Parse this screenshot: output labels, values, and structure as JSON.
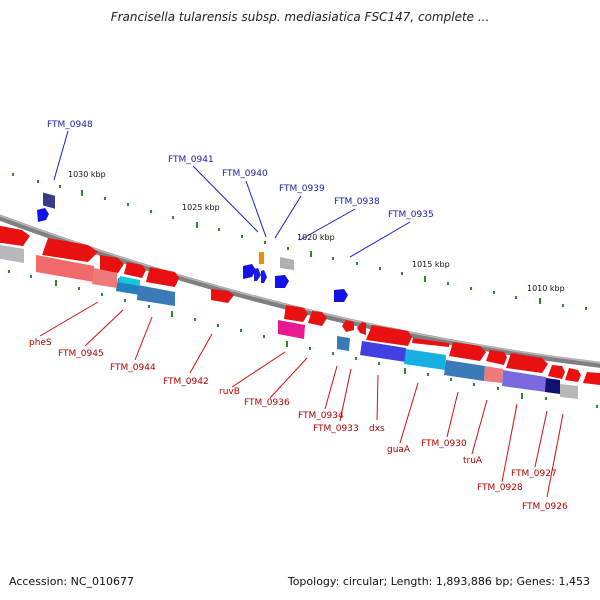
{
  "title": "Francisella tularensis subsp. mediasiatica FSC147, complete ...",
  "footer": {
    "accession": "Accession: NC_010677",
    "summary": "Topology: circular; Length: 1,893,886 bp; Genes: 1,453"
  },
  "colors": {
    "backbone": "#8c8c8c",
    "gene_red": "#e81010",
    "gene_blue": "#1010e0",
    "label_blue": "#1a1aa8",
    "label_red": "#b00000",
    "tick_green": "#1a8a1a"
  },
  "kbp_ticks": [
    "1030 kbp",
    "1025 kbp",
    "1020 kbp",
    "1015 kbp",
    "1010 kbp"
  ],
  "labels_top": [
    "FTM_0948",
    "FTM_0941",
    "FTM_0940",
    "FTM_0939",
    "FTM_0938",
    "FTM_0935"
  ],
  "labels_bottom": [
    "pheS",
    "FTM_0945",
    "FTM_0944",
    "FTM_0942",
    "ruvB",
    "FTM_0936",
    "FTM_0934",
    "FTM_0933",
    "dxs",
    "guaA",
    "FTM_0930",
    "truA",
    "FTM_0927",
    "FTM_0928",
    "FTM_0926"
  ]
}
